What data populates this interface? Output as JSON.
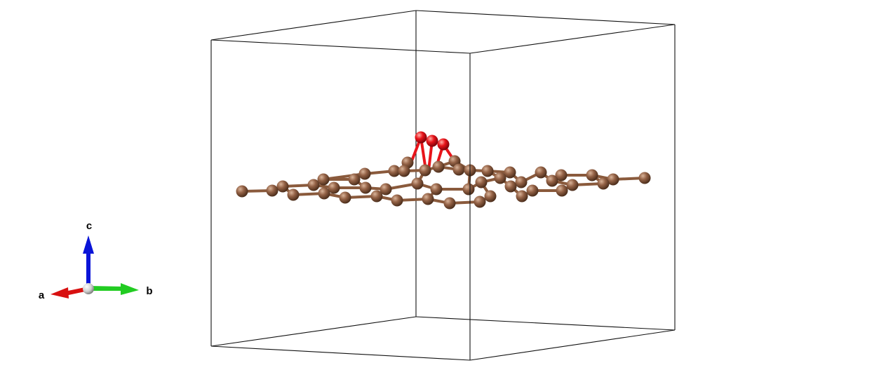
{
  "axes": {
    "a_label": "a",
    "b_label": "b",
    "c_label": "c",
    "a_color": "#d81010",
    "b_color": "#22cc22",
    "c_color": "#0a14d8",
    "origin_color": "#d8d8d8"
  },
  "structure": {
    "carbon_color": "#8a5a3c",
    "oxygen_color": "#e8141a",
    "bond_color": "#8a5a3c",
    "cell_line_color": "#111111"
  }
}
